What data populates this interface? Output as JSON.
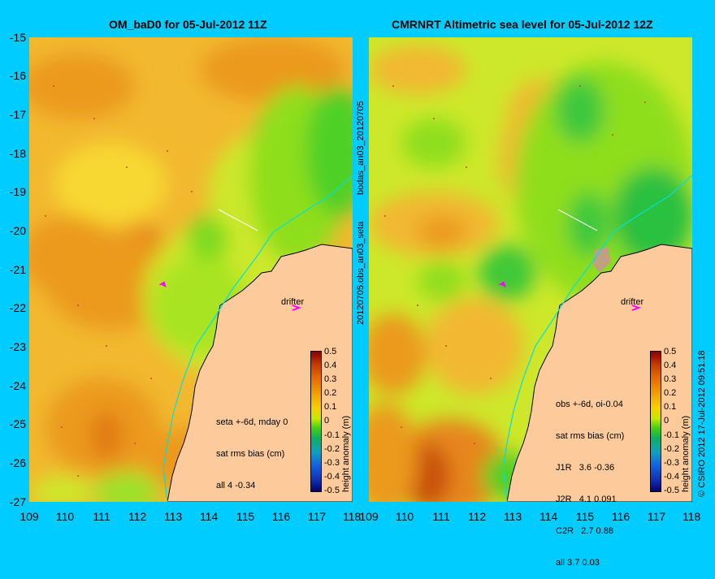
{
  "left_panel": {
    "title": "OM_baD0 for 05-Jul-2012 11Z",
    "stats_lines": [
      "seta +-6d, mday 0",
      "sat rms bias (cm)",
      "all 4 -0.34"
    ],
    "drifter_label": "drifter"
  },
  "right_panel": {
    "title": "CMRNRT Altimetric sea level  for 05-Jul-2012 12Z",
    "stats_lines": [
      "obs +-6d, oi-0.04",
      "sat rms bias (cm)",
      "J1R   3.6 -0.36",
      "J2R   4.1 0.091",
      "C2R   2.7 0.88",
      "all 3.7 0.03"
    ],
    "drifter_label": "drifter"
  },
  "y_ticks": [
    "-15",
    "-16",
    "-17",
    "-18",
    "-19",
    "-20",
    "-21",
    "-22",
    "-23",
    "-24",
    "-25",
    "-26",
    "-27"
  ],
  "x_ticks_left": [
    "109",
    "110",
    "111",
    "112",
    "113",
    "114",
    "115",
    "116",
    "117",
    "118"
  ],
  "x_ticks_right": [
    "109",
    "110",
    "111",
    "112",
    "113",
    "114",
    "115",
    "116",
    "117",
    "118"
  ],
  "colorbar": {
    "ticks": [
      "0.5",
      "0.4",
      "0.3",
      "0.2",
      "0.1",
      "0",
      "-0.1",
      "-0.2",
      "-0.3",
      "-0.4",
      "-0.5"
    ],
    "label": "height anomaly (m)",
    "range": [
      -0.5,
      0.5
    ]
  },
  "side_label_top": "bodas_an03_20120705",
  "side_label_bottom": "20120705.obs_an03_seta",
  "credit": "© CSIRO 2012   17-Jul-2012 09:51:18",
  "map_extent": {
    "lon": [
      109,
      118
    ],
    "lat": [
      -27,
      -15
    ]
  },
  "colors": {
    "background": "#00ccff",
    "land": "#fdcb9b",
    "drifter": "#ff00ff",
    "coast_shelf": "#00e0e0"
  }
}
